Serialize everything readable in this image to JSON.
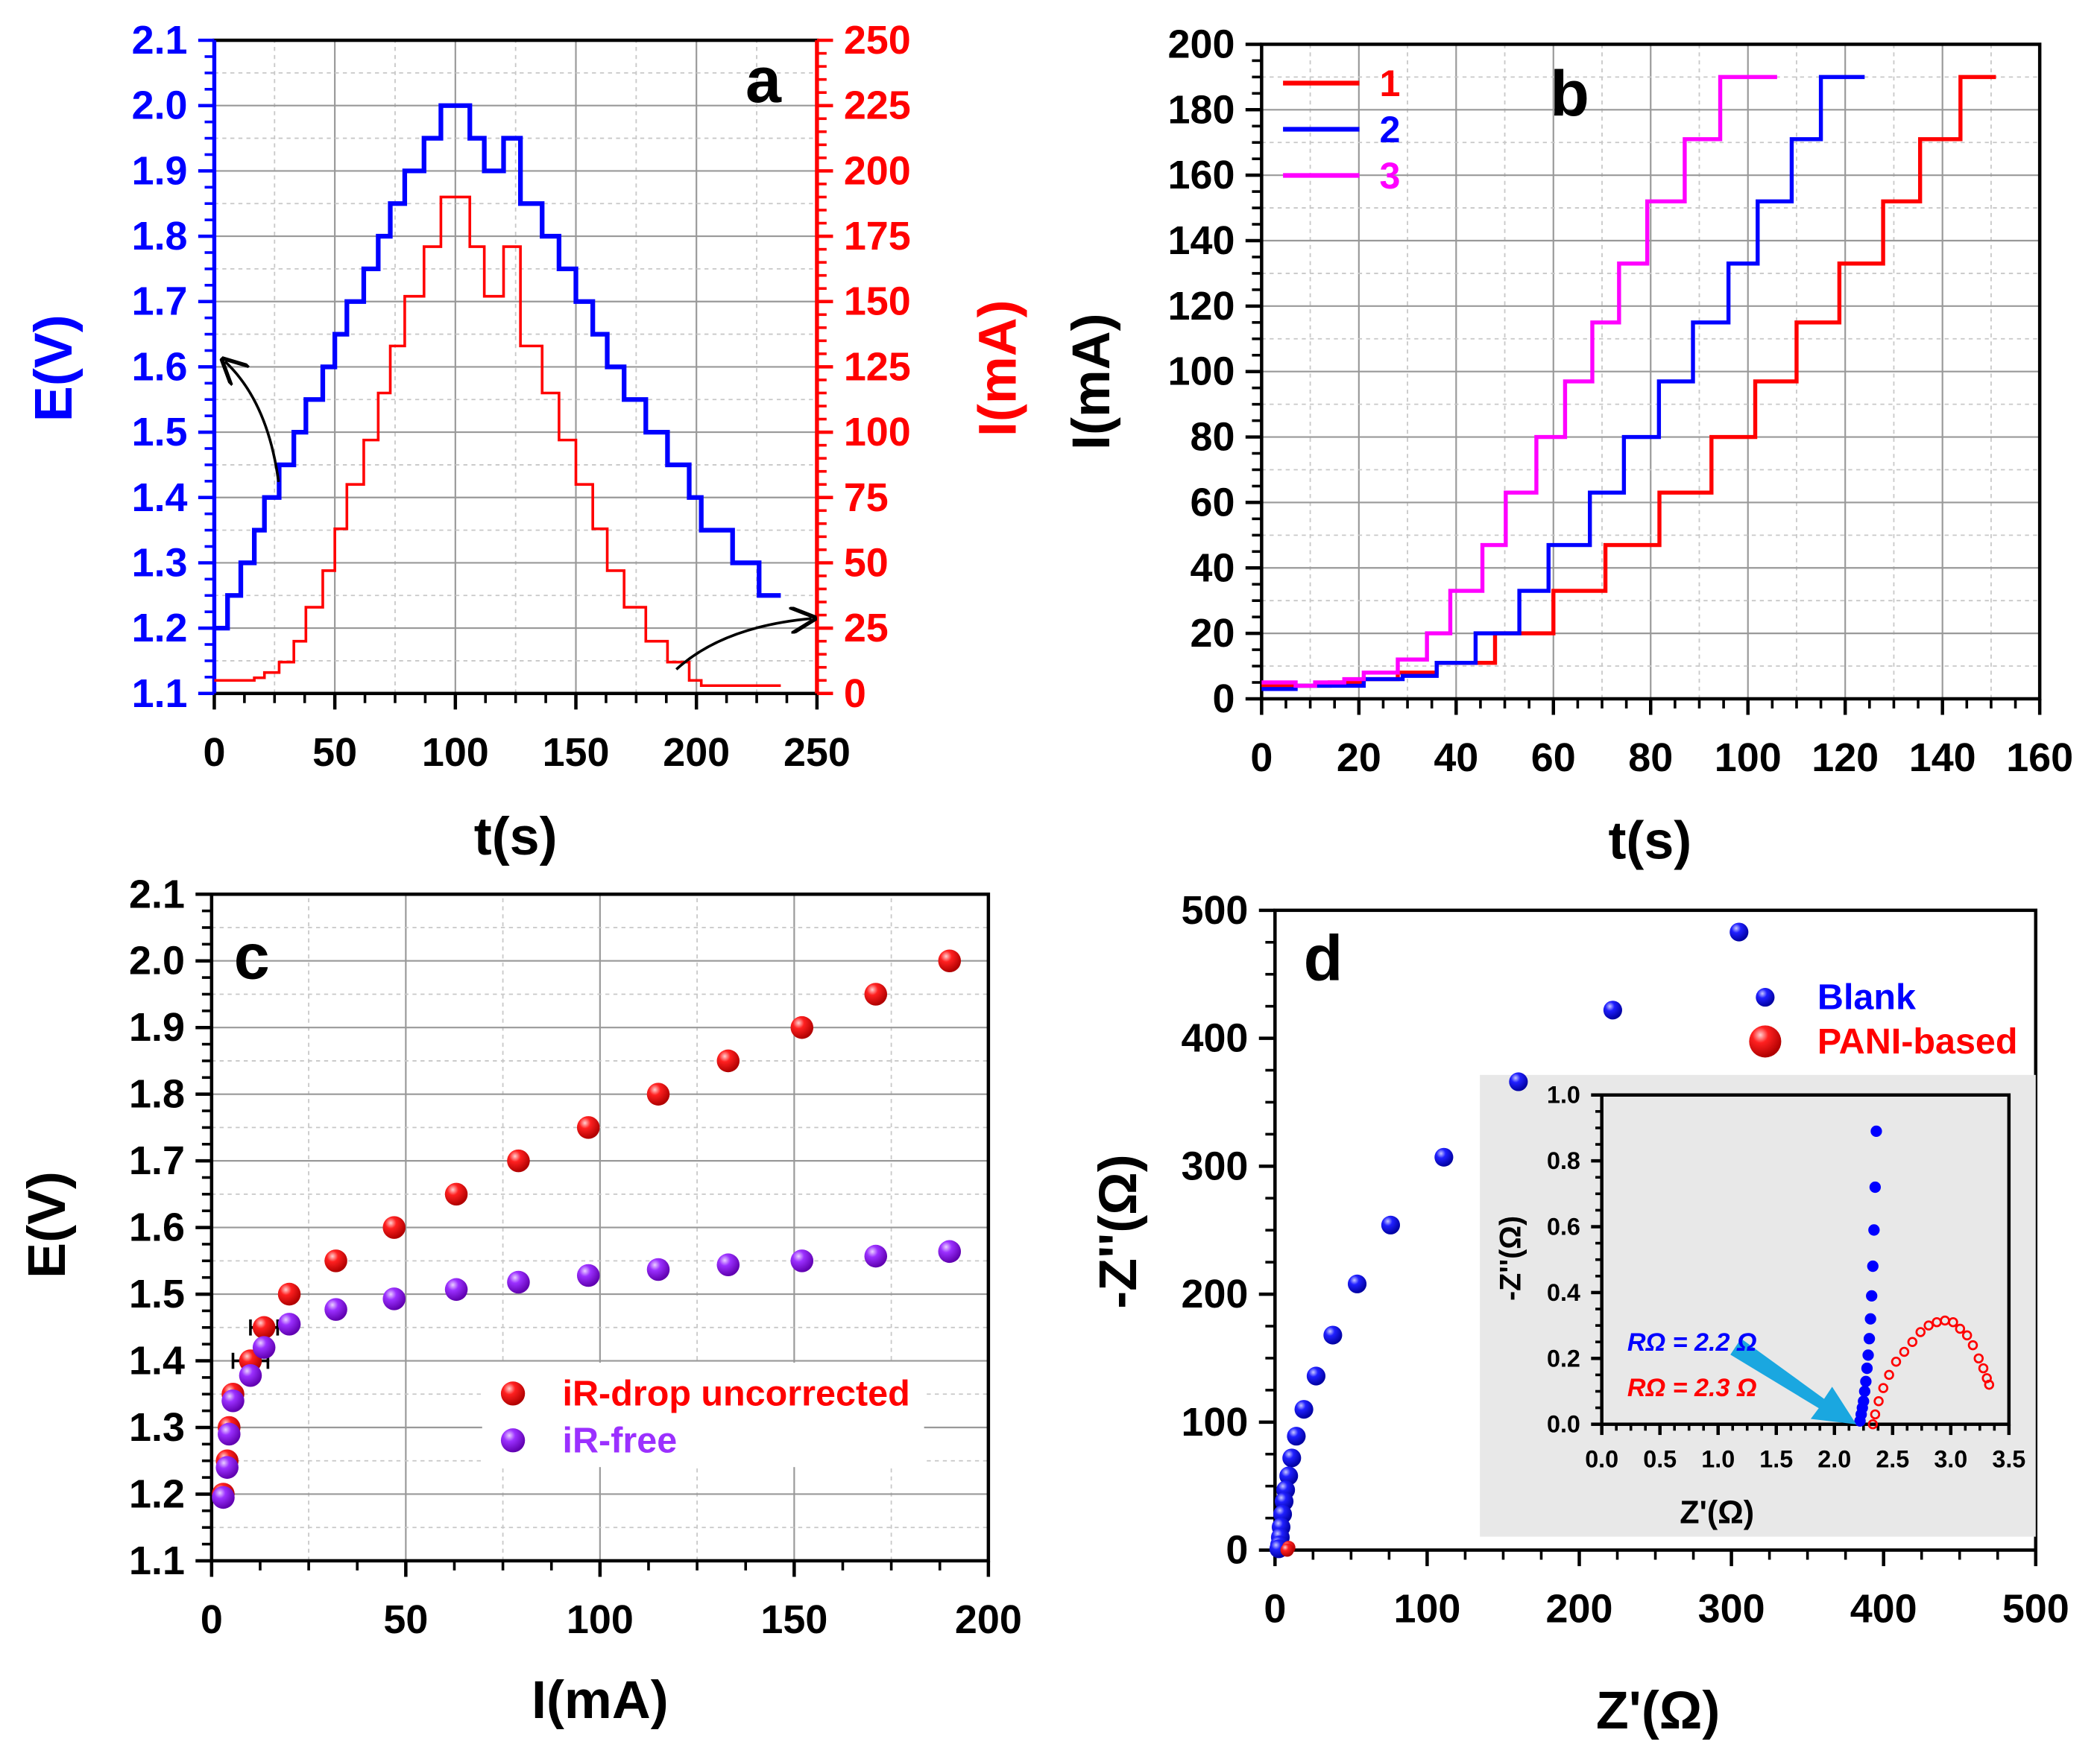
{
  "colors": {
    "blue": "#0000ff",
    "red": "#ff0000",
    "magenta": "#ff00ff",
    "purple": "#9b30ff",
    "black": "#000000",
    "inset_bg": "#e8e8e8",
    "arrow": "#1aa7e0"
  },
  "chart_data": [
    {
      "id": "a",
      "type": "line",
      "panel_label": "a",
      "xlabel": "t(s)",
      "ylabel": "E(V)",
      "y2label": "I(mA)",
      "xlim": [
        0,
        250
      ],
      "ylim": [
        1.1,
        2.1
      ],
      "y2lim": [
        0,
        250
      ],
      "grid": true,
      "xticks": [
        "0",
        "50",
        "100",
        "150",
        "200",
        "250"
      ],
      "yticks": [
        "1.1",
        "1.2",
        "1.3",
        "1.4",
        "1.5",
        "1.6",
        "1.7",
        "1.8",
        "1.9",
        "2.0",
        "2.1"
      ],
      "y2ticks": [
        "0",
        "25",
        "50",
        "75",
        "100",
        "125",
        "150",
        "175",
        "200",
        "225",
        "250"
      ],
      "series": [
        {
          "name": "E",
          "axis": "left",
          "color": "#0000ff",
          "t_start": [
            0,
            5.5,
            11,
            16.6,
            20.8,
            26.9,
            33,
            38,
            45,
            50,
            55,
            62,
            68,
            73,
            79,
            87,
            94,
            106,
            112,
            120,
            127,
            136,
            143,
            150,
            157,
            163,
            170,
            179,
            188,
            197,
            202,
            215,
            226
          ],
          "t_end": 235,
          "values": [
            1.2,
            1.25,
            1.3,
            1.35,
            1.4,
            1.45,
            1.5,
            1.55,
            1.6,
            1.65,
            1.7,
            1.75,
            1.8,
            1.85,
            1.9,
            1.95,
            2.0,
            1.95,
            1.9,
            1.95,
            1.85,
            1.8,
            1.75,
            1.7,
            1.65,
            1.6,
            1.55,
            1.5,
            1.45,
            1.4,
            1.35,
            1.3,
            1.25
          ]
        },
        {
          "name": "I",
          "axis": "right",
          "color": "#ff0000",
          "t_start": [
            0,
            5.5,
            11,
            16.6,
            20.8,
            26.9,
            33,
            38,
            45,
            50,
            55,
            62,
            68,
            73,
            79,
            87,
            94,
            106,
            112,
            120,
            127,
            136,
            143,
            150,
            157,
            163,
            170,
            179,
            188,
            197,
            202,
            215,
            226
          ],
          "t_end": 235,
          "values": [
            5,
            5,
            5,
            6,
            8,
            12,
            20,
            33,
            47,
            63,
            80,
            97,
            115,
            133,
            152,
            171,
            190,
            171,
            152,
            171,
            133,
            115,
            97,
            80,
            63,
            47,
            33,
            20,
            12,
            5,
            3,
            3,
            3
          ]
        }
      ]
    },
    {
      "id": "b",
      "type": "line",
      "panel_label": "b",
      "xlabel": "t(s)",
      "ylabel": "I(mA)",
      "xlim": [
        0,
        160
      ],
      "ylim": [
        0,
        200
      ],
      "grid": true,
      "legend_position": "top-left",
      "xticks": [
        "0",
        "20",
        "40",
        "60",
        "80",
        "100",
        "120",
        "140",
        "160"
      ],
      "yticks": [
        "0",
        "20",
        "40",
        "60",
        "80",
        "100",
        "120",
        "140",
        "160",
        "180",
        "200"
      ],
      "series": [
        {
          "name": "1",
          "color": "#ff0000",
          "t_start": [
            0,
            7,
            14,
            21,
            28,
            36,
            48,
            60,
            70.7,
            81.8,
            92.5,
            101.5,
            110,
            118.8,
            127.8,
            135.4,
            143.7
          ],
          "t_end": 151,
          "values": [
            4,
            4,
            5,
            6,
            8,
            11,
            20,
            33,
            47,
            63,
            80,
            97,
            115,
            133,
            152,
            171,
            190
          ]
        },
        {
          "name": "2",
          "color": "#0000ff",
          "t_start": [
            0,
            7,
            14,
            21,
            29,
            36,
            44,
            53,
            59,
            67.5,
            74.5,
            81.7,
            88.7,
            96,
            102,
            109,
            115
          ],
          "t_end": 124,
          "values": [
            3,
            4,
            4,
            6,
            7,
            11,
            20,
            33,
            47,
            63,
            80,
            97,
            115,
            133,
            152,
            171,
            190
          ]
        },
        {
          "name": "3",
          "color": "#ff00ff",
          "t_start": [
            0,
            7,
            11,
            17,
            21,
            28,
            34,
            38.8,
            45.4,
            50.2,
            56.5,
            62.4,
            68,
            73.5,
            79.3,
            87,
            94.3
          ],
          "t_end": 106,
          "values": [
            5,
            4,
            5,
            6,
            8,
            12,
            20,
            33,
            47,
            63,
            80,
            97,
            115,
            133,
            152,
            171,
            190
          ]
        }
      ]
    },
    {
      "id": "c",
      "type": "scatter",
      "panel_label": "c",
      "xlabel": "I(mA)",
      "ylabel": "E(V)",
      "xlim": [
        0,
        200
      ],
      "ylim": [
        1.1,
        2.1
      ],
      "grid": true,
      "legend_position": "center-right",
      "xticks": [
        "0",
        "50",
        "100",
        "150",
        "200"
      ],
      "yticks": [
        "1.1",
        "1.2",
        "1.3",
        "1.4",
        "1.5",
        "1.6",
        "1.7",
        "1.8",
        "1.9",
        "2.0",
        "2.1"
      ],
      "x": [
        3,
        4,
        4.5,
        5.5,
        10,
        13.5,
        20,
        32,
        47,
        63,
        79,
        97,
        115,
        133,
        152,
        171,
        190
      ],
      "series": [
        {
          "name": "iR-drop uncorrected",
          "color": "#ff0000",
          "values": [
            1.2,
            1.25,
            1.3,
            1.35,
            1.4,
            1.45,
            1.5,
            1.55,
            1.6,
            1.65,
            1.7,
            1.75,
            1.8,
            1.85,
            1.9,
            1.95,
            2.0
          ],
          "x_error": [
            0,
            0,
            0,
            0,
            4.5,
            3.5,
            0,
            0,
            0,
            0,
            0,
            0,
            0,
            0,
            0,
            0,
            0
          ]
        },
        {
          "name": "iR-free",
          "color": "#9b30ff",
          "values": [
            1.195,
            1.24,
            1.29,
            1.34,
            1.378,
            1.42,
            1.455,
            1.477,
            1.493,
            1.507,
            1.518,
            1.528,
            1.537,
            1.544,
            1.55,
            1.557,
            1.564
          ]
        }
      ]
    },
    {
      "id": "d",
      "type": "scatter",
      "panel_label": "d",
      "xlabel": "Z'(Ω)",
      "ylabel": "-Z''(Ω)",
      "xlim": [
        0,
        500
      ],
      "ylim": [
        0,
        500
      ],
      "grid": false,
      "legend_position": "top-right",
      "xticks": [
        "0",
        "100",
        "200",
        "300",
        "400",
        "500"
      ],
      "yticks": [
        "0",
        "100",
        "200",
        "300",
        "400",
        "500"
      ],
      "series": [
        {
          "name": "Blank",
          "color": "#0000ff",
          "x": [
            305,
            222,
            160,
            111,
            76,
            54,
            38,
            27,
            19,
            14,
            11,
            9,
            7,
            6,
            5,
            4,
            3.5,
            3,
            2.5
          ],
          "values": [
            483,
            422,
            366,
            307,
            254,
            208,
            168,
            136,
            110,
            89,
            72,
            58,
            47,
            38,
            28,
            18,
            10,
            4,
            1
          ]
        },
        {
          "name": "PANI-based",
          "color": "#ff0000",
          "x": [
            9,
            8
          ],
          "values": [
            2,
            0
          ]
        }
      ],
      "inset": {
        "xlabel": "Z'(Ω)",
        "ylabel": "-Z''(Ω)",
        "xlim": [
          0,
          3.5
        ],
        "ylim": [
          0,
          1.0
        ],
        "xticks": [
          "0.0",
          "0.5",
          "1.0",
          "1.5",
          "2.0",
          "2.5",
          "3.0",
          "3.5"
        ],
        "yticks": [
          "0.0",
          "0.2",
          "0.4",
          "0.6",
          "0.8",
          "1.0"
        ],
        "annotations": [
          "RΩ = 2.2 Ω",
          "RΩ = 2.3 Ω"
        ],
        "series": [
          {
            "name": "Blank",
            "color": "#0000ff",
            "x": [
              2.36,
              2.35,
              2.34,
              2.33,
              2.32,
              2.31,
              2.3,
              2.29,
              2.28,
              2.27,
              2.26,
              2.25,
              2.24,
              2.23,
              2.22
            ],
            "values": [
              0.89,
              0.72,
              0.59,
              0.48,
              0.39,
              0.32,
              0.26,
              0.21,
              0.17,
              0.13,
              0.1,
              0.07,
              0.05,
              0.03,
              0.01
            ]
          },
          {
            "name": "PANI-based",
            "color": "#ff0000",
            "x": [
              2.33,
              2.35,
              2.38,
              2.42,
              2.47,
              2.53,
              2.6,
              2.67,
              2.74,
              2.81,
              2.88,
              2.95,
              3.02,
              3.08,
              3.14,
              3.19,
              3.24,
              3.28,
              3.31,
              3.33
            ],
            "values": [
              0,
              0.03,
              0.07,
              0.11,
              0.15,
              0.19,
              0.22,
              0.25,
              0.28,
              0.3,
              0.31,
              0.315,
              0.31,
              0.29,
              0.27,
              0.24,
              0.2,
              0.17,
              0.14,
              0.12
            ]
          }
        ]
      }
    }
  ]
}
